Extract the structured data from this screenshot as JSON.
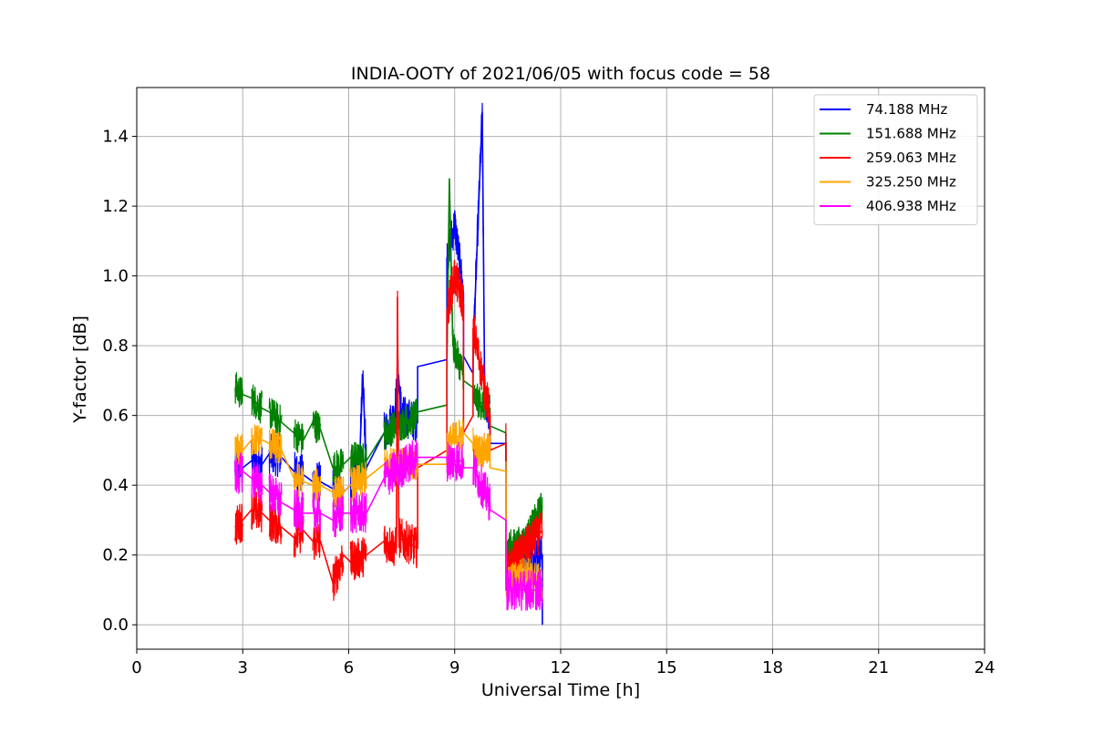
{
  "chart_data": {
    "type": "line",
    "title": "INDIA-OOTY of 2021/06/05 with focus code = 58",
    "xlabel": "Universal Time [h]",
    "ylabel": "Y-factor [dB]",
    "xlim": [
      0,
      24
    ],
    "ylim": [
      -0.07,
      1.54
    ],
    "xticks": [
      0,
      3,
      6,
      9,
      12,
      15,
      18,
      21,
      24
    ],
    "xtick_labels": [
      "0",
      "3",
      "6",
      "9",
      "12",
      "15",
      "18",
      "21",
      "24"
    ],
    "yticks": [
      0.0,
      0.2,
      0.4,
      0.6,
      0.8,
      1.0,
      1.2,
      1.4
    ],
    "ytick_labels": [
      "0.0",
      "0.2",
      "0.4",
      "0.6",
      "0.8",
      "1.0",
      "1.2",
      "1.4"
    ],
    "grid": true,
    "legend_position": "top-right",
    "observation_blocks": [
      [
        2.78,
        3.0
      ],
      [
        3.25,
        3.55
      ],
      [
        3.75,
        4.1
      ],
      [
        4.45,
        4.72
      ],
      [
        4.98,
        5.2
      ],
      [
        5.55,
        5.85
      ],
      [
        6.05,
        6.5
      ],
      [
        7.0,
        7.95
      ],
      [
        8.78,
        9.25
      ],
      [
        9.52,
        10.0
      ],
      [
        10.45,
        11.48
      ]
    ],
    "series": [
      {
        "name": " 74.188 MHz",
        "color": "#0000ff",
        "points": [
          [
            2.78,
            0.45
          ],
          [
            3.0,
            0.45
          ],
          [
            3.25,
            0.47
          ],
          [
            3.55,
            0.46
          ],
          [
            3.75,
            0.49
          ],
          [
            4.1,
            0.48
          ],
          [
            4.45,
            0.44
          ],
          [
            4.72,
            0.43
          ],
          [
            4.98,
            0.41
          ],
          [
            5.2,
            0.41
          ],
          [
            5.55,
            0.39
          ],
          [
            5.85,
            0.38
          ],
          [
            6.05,
            0.4
          ],
          [
            6.3,
            0.45
          ],
          [
            6.4,
            0.71
          ],
          [
            6.5,
            0.45
          ],
          [
            7.0,
            0.55
          ],
          [
            7.3,
            0.6
          ],
          [
            7.4,
            0.72
          ],
          [
            7.5,
            0.6
          ],
          [
            7.95,
            0.58
          ],
          [
            7.95,
            0.74
          ],
          [
            8.78,
            0.76
          ],
          [
            8.78,
            1.05
          ],
          [
            9.0,
            1.15
          ],
          [
            9.25,
            0.95
          ],
          [
            9.25,
            0.77
          ],
          [
            9.52,
            0.72
          ],
          [
            9.52,
            0.78
          ],
          [
            9.78,
            1.47
          ],
          [
            9.85,
            0.65
          ],
          [
            10.0,
            0.6
          ],
          [
            10.0,
            0.52
          ],
          [
            10.45,
            0.52
          ],
          [
            10.45,
            0.18
          ],
          [
            11.0,
            0.2
          ],
          [
            11.48,
            0.2
          ],
          [
            11.48,
            0.0
          ]
        ]
      },
      {
        "name": "151.688 MHz",
        "color": "#008000",
        "points": [
          [
            2.78,
            0.68
          ],
          [
            3.0,
            0.66
          ],
          [
            3.25,
            0.65
          ],
          [
            3.55,
            0.62
          ],
          [
            3.75,
            0.61
          ],
          [
            4.1,
            0.58
          ],
          [
            4.45,
            0.55
          ],
          [
            4.72,
            0.53
          ],
          [
            4.98,
            0.58
          ],
          [
            5.2,
            0.56
          ],
          [
            5.55,
            0.45
          ],
          [
            5.85,
            0.46
          ],
          [
            6.05,
            0.48
          ],
          [
            6.5,
            0.47
          ],
          [
            7.0,
            0.55
          ],
          [
            7.95,
            0.6
          ],
          [
            7.95,
            0.61
          ],
          [
            8.78,
            0.63
          ],
          [
            8.78,
            0.75
          ],
          [
            8.85,
            1.28
          ],
          [
            8.95,
            0.8
          ],
          [
            9.25,
            0.72
          ],
          [
            9.25,
            0.7
          ],
          [
            9.52,
            0.68
          ],
          [
            9.52,
            0.65
          ],
          [
            10.0,
            0.62
          ],
          [
            10.0,
            0.57
          ],
          [
            10.45,
            0.55
          ],
          [
            10.45,
            0.22
          ],
          [
            11.0,
            0.24
          ],
          [
            11.48,
            0.34
          ]
        ]
      },
      {
        "name": "259.063 MHz",
        "color": "#ff0000",
        "points": [
          [
            2.78,
            0.28
          ],
          [
            3.0,
            0.3
          ],
          [
            3.25,
            0.33
          ],
          [
            3.55,
            0.32
          ],
          [
            3.75,
            0.3
          ],
          [
            4.1,
            0.28
          ],
          [
            4.45,
            0.25
          ],
          [
            4.72,
            0.27
          ],
          [
            4.98,
            0.24
          ],
          [
            5.2,
            0.24
          ],
          [
            5.55,
            0.12
          ],
          [
            5.85,
            0.2
          ],
          [
            6.05,
            0.18
          ],
          [
            6.5,
            0.2
          ],
          [
            7.0,
            0.24
          ],
          [
            7.35,
            0.22
          ],
          [
            7.38,
            0.94
          ],
          [
            7.42,
            0.25
          ],
          [
            7.95,
            0.22
          ],
          [
            7.95,
            0.45
          ],
          [
            8.78,
            0.5
          ],
          [
            8.78,
            0.9
          ],
          [
            9.0,
            1.0
          ],
          [
            9.25,
            0.92
          ],
          [
            9.25,
            0.55
          ],
          [
            9.52,
            0.6
          ],
          [
            9.52,
            0.85
          ],
          [
            10.0,
            0.6
          ],
          [
            10.0,
            0.5
          ],
          [
            10.45,
            0.52
          ],
          [
            10.45,
            0.15
          ],
          [
            11.0,
            0.22
          ],
          [
            11.48,
            0.27
          ]
        ]
      },
      {
        "name": "325.250 MHz",
        "color": "#ffa500",
        "points": [
          [
            2.78,
            0.5
          ],
          [
            3.0,
            0.5
          ],
          [
            3.25,
            0.53
          ],
          [
            3.55,
            0.53
          ],
          [
            3.75,
            0.52
          ],
          [
            4.1,
            0.5
          ],
          [
            4.45,
            0.42
          ],
          [
            4.72,
            0.41
          ],
          [
            4.98,
            0.4
          ],
          [
            5.2,
            0.4
          ],
          [
            5.55,
            0.38
          ],
          [
            5.85,
            0.38
          ],
          [
            6.05,
            0.4
          ],
          [
            6.5,
            0.42
          ],
          [
            7.0,
            0.46
          ],
          [
            7.95,
            0.46
          ],
          [
            7.95,
            0.46
          ],
          [
            8.78,
            0.46
          ],
          [
            8.78,
            0.52
          ],
          [
            9.25,
            0.55
          ],
          [
            9.25,
            0.55
          ],
          [
            9.52,
            0.52
          ],
          [
            9.52,
            0.5
          ],
          [
            10.0,
            0.5
          ],
          [
            10.0,
            0.45
          ],
          [
            10.45,
            0.44
          ],
          [
            10.45,
            0.12
          ],
          [
            11.0,
            0.15
          ],
          [
            11.48,
            0.12
          ]
        ]
      },
      {
        "name": "406.938 MHz",
        "color": "#ff00ff",
        "points": [
          [
            2.78,
            0.42
          ],
          [
            3.0,
            0.44
          ],
          [
            3.25,
            0.42
          ],
          [
            3.55,
            0.4
          ],
          [
            3.75,
            0.38
          ],
          [
            4.1,
            0.35
          ],
          [
            4.45,
            0.33
          ],
          [
            4.72,
            0.32
          ],
          [
            4.98,
            0.32
          ],
          [
            5.2,
            0.32
          ],
          [
            5.55,
            0.3
          ],
          [
            5.85,
            0.32
          ],
          [
            6.05,
            0.32
          ],
          [
            6.5,
            0.32
          ],
          [
            7.0,
            0.42
          ],
          [
            7.95,
            0.48
          ],
          [
            7.95,
            0.48
          ],
          [
            8.78,
            0.48
          ],
          [
            8.78,
            0.47
          ],
          [
            9.25,
            0.47
          ],
          [
            9.25,
            0.45
          ],
          [
            9.52,
            0.45
          ],
          [
            9.52,
            0.45
          ],
          [
            10.0,
            0.35
          ],
          [
            10.0,
            0.33
          ],
          [
            10.45,
            0.3
          ],
          [
            10.45,
            0.1
          ],
          [
            11.0,
            0.1
          ],
          [
            11.48,
            0.1
          ]
        ]
      }
    ]
  }
}
